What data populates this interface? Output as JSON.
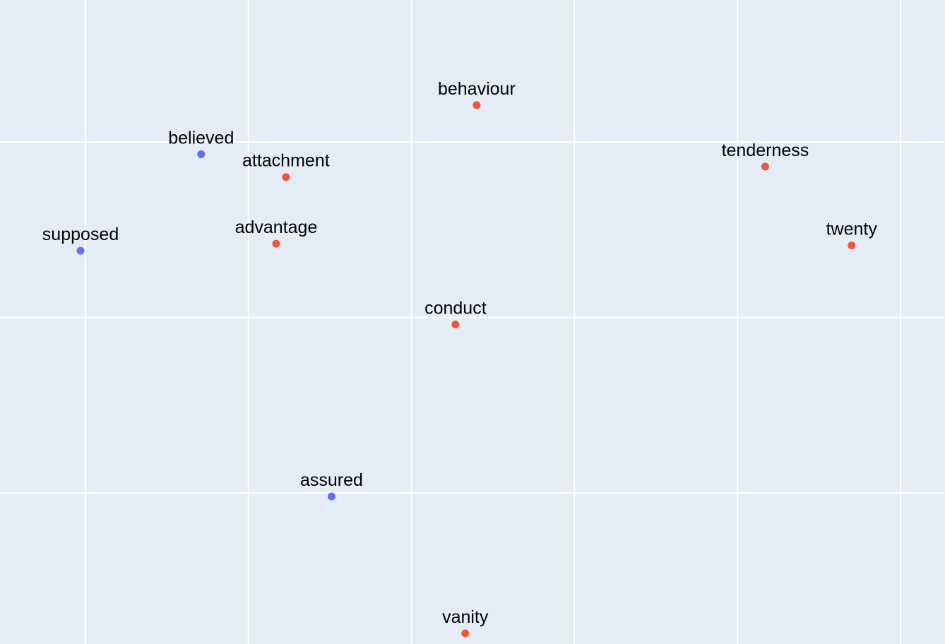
{
  "chart_data": {
    "type": "scatter",
    "series": [
      {
        "color": "#ef553b",
        "labels": [
          "behaviour",
          "attachment",
          "advantage",
          "tenderness",
          "twenty",
          "conduct",
          "vanity"
        ],
        "x": [
          2.4,
          1.23,
          1.17,
          4.17,
          4.7,
          2.27,
          2.33
        ],
        "values": [
          2.21,
          1.8,
          1.42,
          1.86,
          1.41,
          0.96,
          -0.8
        ]
      },
      {
        "color": "#636efa",
        "labels": [
          "believed",
          "supposed",
          "assured"
        ],
        "x": [
          0.71,
          -0.03,
          1.51
        ],
        "values": [
          1.93,
          1.38,
          -0.02
        ]
      }
    ],
    "xlim": [
      -0.524,
      5.273
    ],
    "ylim": [
      -0.861,
      2.809
    ],
    "xticks": [
      0,
      1,
      2,
      3,
      4,
      5
    ],
    "yticks": [
      0,
      1,
      2
    ],
    "grid": true
  }
}
